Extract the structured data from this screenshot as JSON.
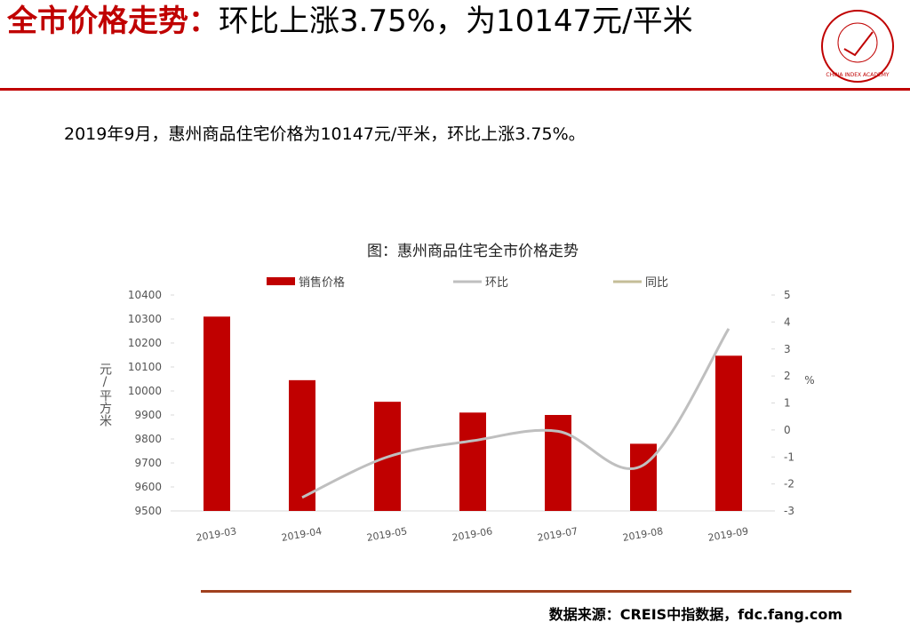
{
  "header": {
    "title_highlight": "全市价格走势：",
    "title_rest": "环比上涨3.75%，为10147元/平米",
    "logo_text": "CHINA INDEX ACADEMY"
  },
  "summary": "2019年9月，惠州商品住宅价格为10147元/平米，环比上涨3.75%。",
  "chart_data": {
    "type": "bar",
    "title": "图：惠州商品住宅全市价格走势",
    "categories": [
      "2019-03",
      "2019-04",
      "2019-05",
      "2019-06",
      "2019-07",
      "2019-08",
      "2019-09"
    ],
    "series": [
      {
        "name": "销售价格",
        "type": "bar",
        "color": "#c00000",
        "values": [
          10310,
          10045,
          9955,
          9910,
          9900,
          9780,
          10147
        ]
      },
      {
        "name": "环比",
        "type": "line",
        "axis": "y2",
        "color": "#bfbfbf",
        "values": [
          null,
          -2.5,
          -1.0,
          -0.4,
          -0.05,
          -1.3,
          3.75
        ]
      },
      {
        "name": "同比",
        "type": "line",
        "axis": "y2",
        "color": "#c4bd97",
        "values": [
          null,
          null,
          null,
          null,
          null,
          null,
          null
        ]
      }
    ],
    "ylabel": "元/平方米",
    "y2label": "%",
    "ylim": [
      9500,
      10400
    ],
    "yticks": [
      9500,
      9600,
      9700,
      9800,
      9900,
      10000,
      10100,
      10200,
      10300,
      10400
    ],
    "y2lim": [
      -3,
      5
    ],
    "y2ticks": [
      -3,
      -2,
      -1,
      0,
      1,
      2,
      3,
      4,
      5
    ],
    "legend": "top"
  },
  "source": "数据来源：CREIS中指数据，fdc.fang.com"
}
